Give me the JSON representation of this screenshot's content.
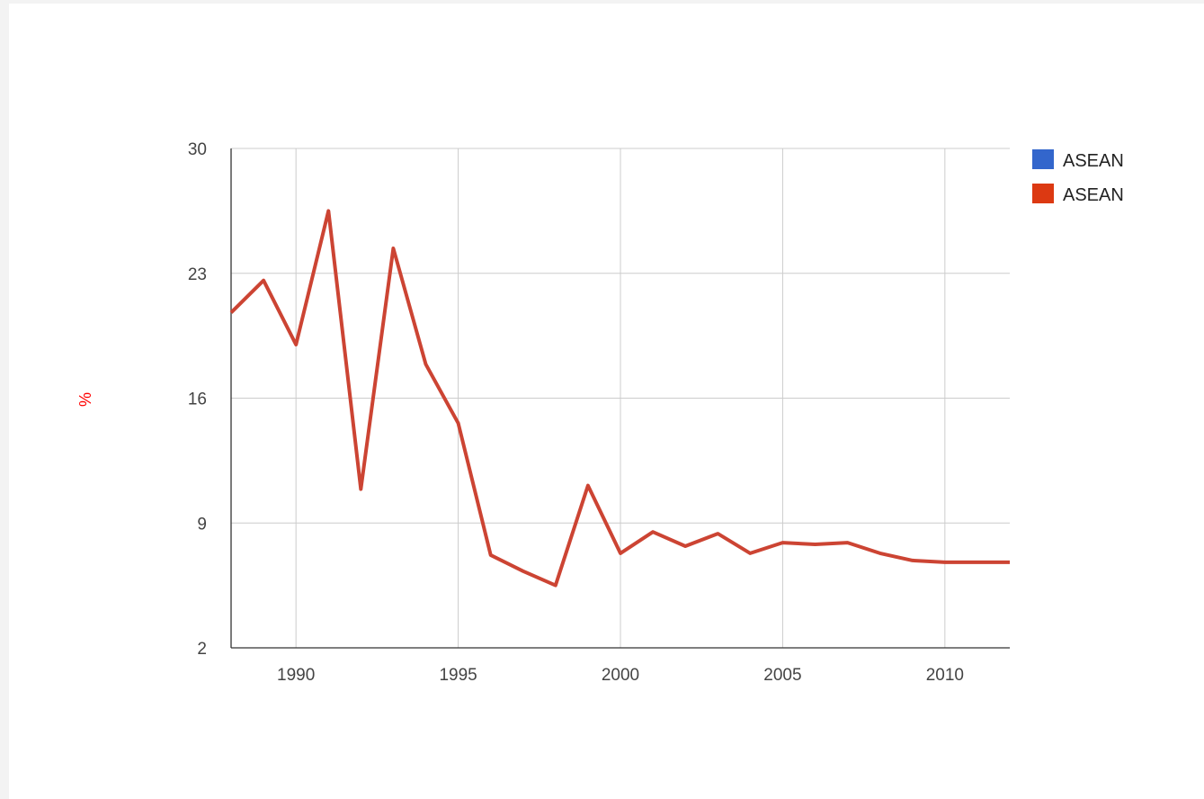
{
  "chart_data": {
    "type": "line",
    "title": "",
    "xlabel": "",
    "ylabel": "%",
    "ylabel_color": "#ff0000",
    "xlim": [
      1988,
      2012
    ],
    "ylim": [
      2,
      30
    ],
    "x_ticks": [
      1990,
      1995,
      2000,
      2005,
      2010
    ],
    "y_ticks": [
      2,
      9,
      16,
      23,
      30
    ],
    "x_tick_labels": [
      "1990",
      "1995",
      "2000",
      "2005",
      "2010"
    ],
    "y_tick_labels": [
      "2",
      "9",
      "16",
      "23",
      "30"
    ],
    "grid": true,
    "legend_position": "right",
    "legend": [
      {
        "name": "ASEAN",
        "color": "#3366cc"
      },
      {
        "name": "ASEAN",
        "color": "#dc3912"
      }
    ],
    "series": [
      {
        "name": "ASEAN",
        "color": "#cc4433",
        "x": [
          1988,
          1989,
          1990,
          1991,
          1992,
          1993,
          1994,
          1995,
          1996,
          1997,
          1998,
          1999,
          2000,
          2001,
          2002,
          2003,
          2004,
          2005,
          2006,
          2007,
          2008,
          2009,
          2010,
          2011,
          2012
        ],
        "y": [
          20.8,
          22.6,
          19.0,
          26.5,
          10.9,
          24.4,
          17.9,
          14.6,
          7.2,
          6.3,
          5.5,
          11.1,
          7.3,
          8.5,
          7.7,
          8.4,
          7.3,
          7.9,
          7.8,
          7.9,
          7.3,
          6.9,
          6.8,
          6.8,
          6.8
        ]
      }
    ]
  }
}
